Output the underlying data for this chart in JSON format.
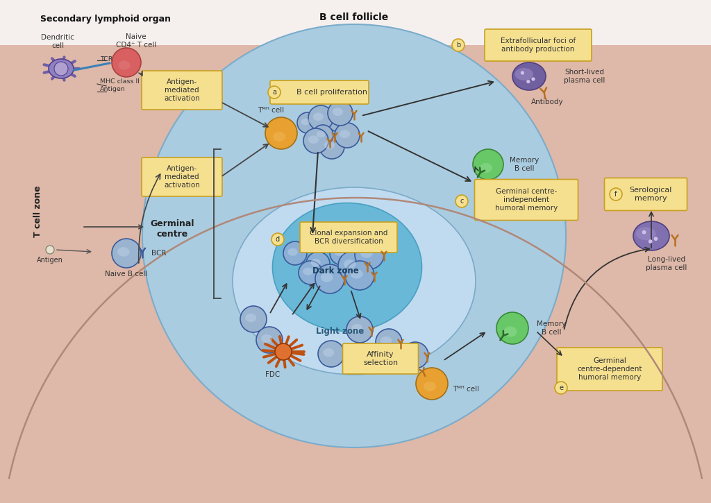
{
  "bg_outer": "#deb8a8",
  "bg_follicle": "#aacce0",
  "bg_light_zone": "#b8d8ec",
  "bg_dark_zone": "#6ab8d8",
  "color_naive_b": "#9ab4d0",
  "color_tfh": "#e8a030",
  "color_memory_b": "#68c868",
  "color_plasma": "#8070b0",
  "color_dendritic": "#9080c0",
  "color_naive_t": "#d86060",
  "color_fdc_body": "#e07030",
  "color_antibody": "#b87020",
  "label_secondary": "Secondary lymphoid organ",
  "label_follicle": "B cell follicle",
  "label_light_zone": "Light zone",
  "label_dark_zone": "Dark zone",
  "label_germinal": "Germinal\ncentre",
  "label_t_zone": "T cell zone",
  "box_a": "B cell proliferation",
  "box_b": "Extrafollicular foci of\nantibody production",
  "box_c": "Germinal centre-\nindependent\nhumoral memory",
  "box_d": "Clonal expansion and\nBCR diversification",
  "box_e": "Germinal\ncentre-dependent\nhumoral memory",
  "box_f": "Serological\nmemory",
  "box_affinity": "Affinity\nselection",
  "box_antigen_med1": "Antigen-\nmediated\nactivation",
  "box_antigen_med2": "Antigen-\nmediated\nactivation",
  "label_antigen": "Antigen",
  "label_bcr": "BCR",
  "label_naive_b": "Naive B cell",
  "label_tfh_lower": "Tᴹᴴ cell",
  "label_tfh_upper": "Tᴹᴴ cell",
  "label_memory_b_upper": "Memory\nB cell",
  "label_memory_b_lower": "Memory\nB cell",
  "label_fdc": "FDC",
  "label_long_plasma": "Long-lived\nplasma cell",
  "label_short_plasma": "Short-lived\nplasma cell",
  "label_antibody": "Antibody",
  "label_dendritic": "Dendritic\ncell",
  "label_mhc": "MHC class II",
  "label_antigen2": "Antigen",
  "label_tcr": "TCR",
  "label_naive_cd4": "Naive\nCD4⁺ T cell"
}
